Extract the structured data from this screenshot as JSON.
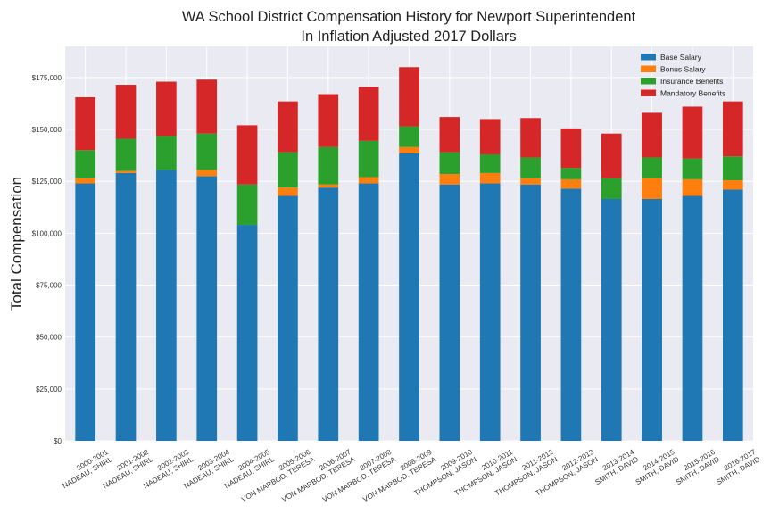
{
  "chart_data": {
    "type": "bar",
    "stacked": true,
    "title_lines": [
      "WA School District Compensation History for Newport Superintendent",
      "In Inflation Adjusted 2017 Dollars"
    ],
    "xlabel": "",
    "ylabel": "Total Compensation",
    "ylim": [
      0,
      190000
    ],
    "yticks": [
      0,
      25000,
      50000,
      75000,
      100000,
      125000,
      150000,
      175000
    ],
    "ytick_labels": [
      "$0",
      "$25,000",
      "$50,000",
      "$75,000",
      "$100,000",
      "$125,000",
      "$150,000",
      "$175,000"
    ],
    "grid": true,
    "legend_position": "top-right",
    "categories": [
      [
        "2000-2001",
        "NADEAU, SHIRL"
      ],
      [
        "2001-2002",
        "NADEAU, SHIRL"
      ],
      [
        "2002-2003",
        "NADEAU, SHIRL"
      ],
      [
        "2003-2004",
        "NADEAU, SHIRL"
      ],
      [
        "2004-2005",
        "NADEAU, SHIRL"
      ],
      [
        "2005-2006",
        "VON MARBOD, TERESA"
      ],
      [
        "2006-2007",
        "VON MARBOD, TERESA"
      ],
      [
        "2007-2008",
        "VON MARBOD, TERESA"
      ],
      [
        "2008-2009",
        "VON MARBOD, TERESA"
      ],
      [
        "2009-2010",
        "THOMPSON, JASON"
      ],
      [
        "2010-2011",
        "THOMPSON, JASON"
      ],
      [
        "2011-2012",
        "THOMPSON, JASON"
      ],
      [
        "2012-2013",
        "THOMPSON, JASON"
      ],
      [
        "2013-2014",
        "SMITH, DAVID"
      ],
      [
        "2014-2015",
        "SMITH, DAVID"
      ],
      [
        "2015-2016",
        "SMITH, DAVID"
      ],
      [
        "2016-2017",
        "SMITH, DAVID"
      ]
    ],
    "series": [
      {
        "name": "Base Salary",
        "color": "#1f77b4",
        "values": [
          124000,
          129000,
          130500,
          127500,
          104000,
          118000,
          122000,
          124000,
          138500,
          123500,
          124000,
          123500,
          121500,
          116500,
          116500,
          118000,
          121000
        ]
      },
      {
        "name": "Bonus Salary",
        "color": "#ff7f0e",
        "values": [
          2500,
          1000,
          0,
          3000,
          0,
          4000,
          1500,
          3000,
          3000,
          5000,
          5000,
          3000,
          4500,
          0,
          10000,
          8000,
          4500
        ]
      },
      {
        "name": "Insurance Benefits",
        "color": "#2ca02c",
        "values": [
          13500,
          15500,
          16500,
          17500,
          19500,
          17000,
          18000,
          17500,
          10000,
          10500,
          9000,
          10000,
          5500,
          10000,
          10000,
          10000,
          11500
        ]
      },
      {
        "name": "Mandatory Benefits",
        "color": "#d62728",
        "values": [
          25500,
          26000,
          26000,
          26000,
          28500,
          24500,
          25500,
          26000,
          28500,
          17000,
          17000,
          19000,
          19000,
          21500,
          21500,
          25000,
          26500
        ]
      }
    ]
  }
}
